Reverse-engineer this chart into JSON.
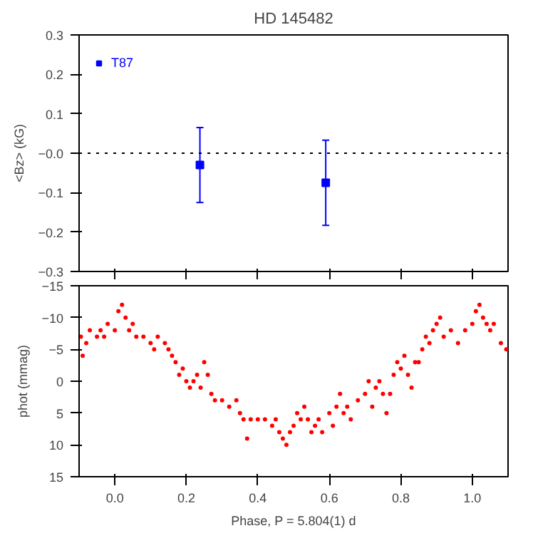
{
  "chart_data": [
    {
      "type": "scatter",
      "title": "HD 145482",
      "ylabel": "<Bz> (kG)",
      "x": [
        0.238,
        0.59
      ],
      "series": [
        {
          "name": "T87",
          "color": "#0000ff",
          "values": [
            -0.03,
            -0.075
          ],
          "errors": [
            0.095,
            0.108
          ]
        }
      ],
      "xlim": [
        -0.1,
        1.1
      ],
      "xticks": [
        {
          "value": 0,
          "label": null
        },
        {
          "value": 0.2,
          "label": null
        },
        {
          "value": 0.4,
          "label": null
        },
        {
          "value": 0.6,
          "label": null
        },
        {
          "value": 0.8,
          "label": null
        },
        {
          "value": 1,
          "label": null
        }
      ],
      "ylim": [
        -0.3,
        0.3
      ],
      "yticks": [
        {
          "value": -0.3,
          "label": "−0.3"
        },
        {
          "value": -0.2,
          "label": "−0.2"
        },
        {
          "value": -0.1,
          "label": "−0.1"
        },
        {
          "value": 0,
          "label": "−0.0"
        },
        0.1,
        0.2,
        0.3
      ],
      "tick_labels": "y",
      "ref_lines": [
        {
          "axis": "y",
          "value": 0,
          "line_style": "dotted",
          "color": "#000000"
        }
      ],
      "legend": "top left",
      "marker": "square",
      "grid": false
    },
    {
      "type": "scatter",
      "ylabel": "phot (mmag)",
      "xlabel": "Phase, P = 5.804(1) d",
      "series": [
        {
          "color": "#ff0000",
          "x": [
            -0.095,
            -0.09,
            -0.08,
            -0.07,
            -0.05,
            -0.04,
            -0.03,
            -0.02,
            0.0,
            0.01,
            0.02,
            0.03,
            0.04,
            0.05,
            0.06,
            0.08,
            0.1,
            0.11,
            0.12,
            0.14,
            0.15,
            0.16,
            0.17,
            0.18,
            0.19,
            0.2,
            0.21,
            0.22,
            0.23,
            0.24,
            0.25,
            0.26,
            0.27,
            0.28,
            0.3,
            0.32,
            0.34,
            0.35,
            0.36,
            0.37,
            0.38,
            0.4,
            0.42,
            0.44,
            0.45,
            0.46,
            0.47,
            0.48,
            0.49,
            0.5,
            0.51,
            0.52,
            0.53,
            0.54,
            0.55,
            0.56,
            0.57,
            0.58,
            0.6,
            0.61,
            0.62,
            0.63,
            0.64,
            0.65,
            0.66,
            0.68,
            0.7,
            0.71,
            0.72,
            0.73,
            0.74,
            0.75,
            0.76,
            0.77,
            0.78,
            0.79,
            0.8,
            0.81,
            0.82,
            0.83,
            0.84,
            0.85,
            0.86,
            0.87,
            0.88,
            0.89,
            0.9,
            0.91,
            0.92,
            0.94,
            0.96,
            0.98,
            1.0,
            1.01,
            1.02,
            1.03,
            1.04,
            1.05,
            1.06,
            1.08,
            1.095
          ],
          "values": [
            -7,
            -4,
            -6,
            -8,
            -7,
            -8,
            -7,
            -9,
            -8,
            -11,
            -12,
            -10,
            -8,
            -9,
            -7,
            -7,
            -6,
            -5,
            -7,
            -6,
            -5,
            -4,
            -3,
            -1,
            -2,
            0,
            1,
            0,
            -1,
            1,
            -3,
            -1,
            2,
            3,
            3,
            4,
            3,
            5,
            6,
            9,
            6,
            6,
            6,
            7,
            6,
            8,
            9,
            10,
            8,
            7,
            5,
            6,
            4,
            6,
            8,
            7,
            6,
            8,
            5,
            7,
            4,
            2,
            5,
            4,
            6,
            3,
            2,
            0,
            4,
            1,
            0,
            2,
            5,
            2,
            -1,
            -3,
            -2,
            -4,
            -1,
            1,
            -3,
            -3,
            -5,
            -7,
            -6,
            -8,
            -9,
            -10,
            -7,
            -8,
            -6,
            -8,
            -9,
            -11,
            -12,
            -10,
            -9,
            -8,
            -9,
            -6,
            -5
          ]
        }
      ],
      "xlim": [
        -0.1,
        1.1
      ],
      "xticks": [
        {
          "value": 0,
          "label": "0.0"
        },
        0.2,
        0.4,
        0.6,
        0.8,
        {
          "value": 1,
          "label": "1.0"
        }
      ],
      "ylim": [
        15,
        -15
      ],
      "yticks": [
        {
          "value": -15,
          "label": "−15"
        },
        {
          "value": -10,
          "label": "−10"
        },
        {
          "value": -5,
          "label": "−5"
        },
        0,
        5,
        10,
        15
      ],
      "marker": "circle",
      "grid": false
    }
  ]
}
